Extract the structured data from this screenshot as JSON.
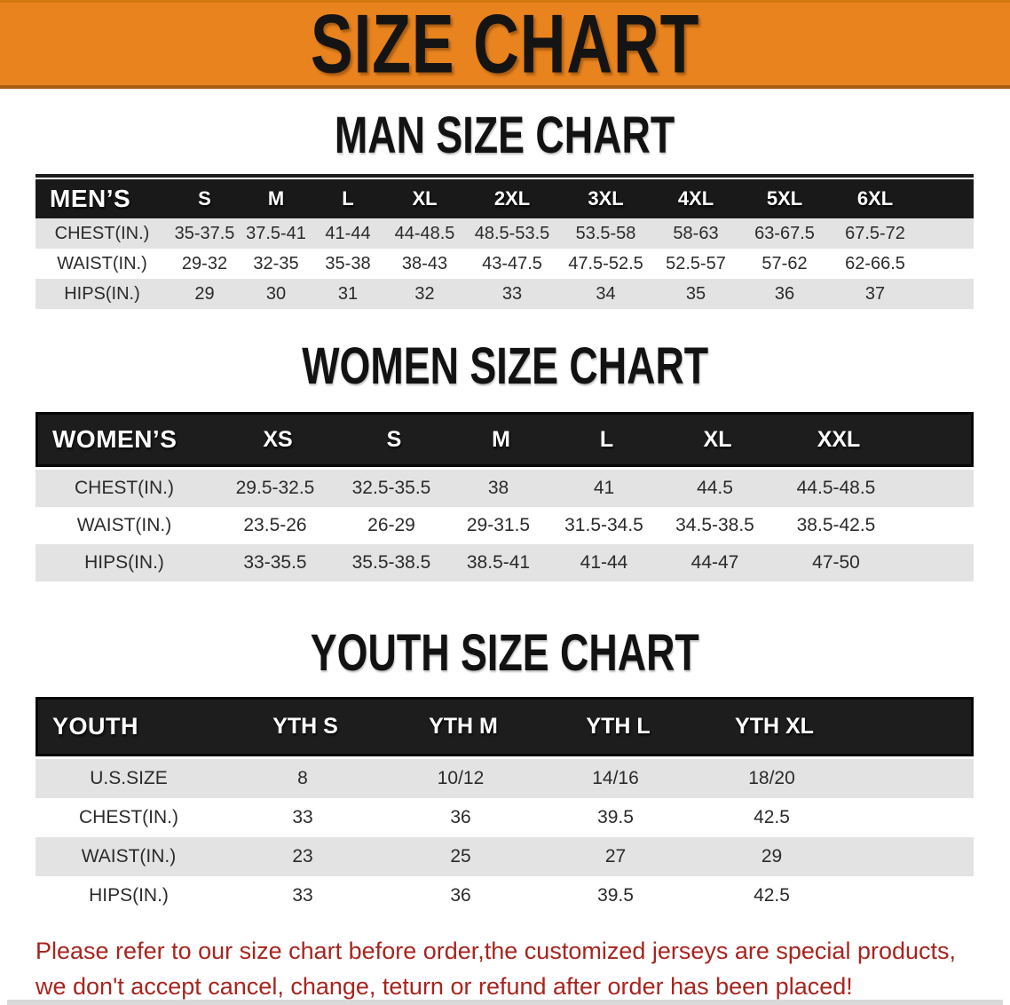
{
  "banner": {
    "title": "SIZE CHART",
    "bg_color": "#e8831e"
  },
  "sections": {
    "men": {
      "heading": "MAN SIZE CHART"
    },
    "women": {
      "heading": "WOMEN SIZE CHART"
    },
    "youth": {
      "heading": "YOUTH SIZE CHART"
    }
  },
  "tables": {
    "men": {
      "label": "MEN’S",
      "columns": [
        "S",
        "M",
        "L",
        "XL",
        "2XL",
        "3XL",
        "4XL",
        "5XL",
        "6XL"
      ],
      "rows": [
        {
          "label": "CHEST(IN.)",
          "values": [
            "35-37.5",
            "37.5-41",
            "41-44",
            "44-48.5",
            "48.5-53.5",
            "53.5-58",
            "58-63",
            "63-67.5",
            "67.5-72"
          ]
        },
        {
          "label": "WAIST(IN.)",
          "values": [
            "29-32",
            "32-35",
            "35-38",
            "38-43",
            "43-47.5",
            "47.5-52.5",
            "52.5-57",
            "57-62",
            "62-66.5"
          ]
        },
        {
          "label": "HIPS(IN.)",
          "values": [
            "29",
            "30",
            "31",
            "32",
            "33",
            "34",
            "35",
            "36",
            "37"
          ]
        }
      ]
    },
    "women": {
      "label": "WOMEN’S",
      "columns": [
        "XS",
        "S",
        "M",
        "L",
        "XL",
        "XXL"
      ],
      "rows": [
        {
          "label": "CHEST(IN.)",
          "values": [
            "29.5-32.5",
            "32.5-35.5",
            "38",
            "41",
            "44.5",
            "44.5-48.5"
          ]
        },
        {
          "label": "WAIST(IN.)",
          "values": [
            "23.5-26",
            "26-29",
            "29-31.5",
            "31.5-34.5",
            "34.5-38.5",
            "38.5-42.5"
          ]
        },
        {
          "label": "HIPS(IN.)",
          "values": [
            "33-35.5",
            "35.5-38.5",
            "38.5-41",
            "41-44",
            "44-47",
            "47-50"
          ]
        }
      ]
    },
    "youth": {
      "label": "YOUTH",
      "columns": [
        "YTH S",
        "YTH M",
        "YTH L",
        "YTH XL"
      ],
      "rows": [
        {
          "label": "U.S.SIZE",
          "values": [
            "8",
            "10/12",
            "14/16",
            "18/20"
          ]
        },
        {
          "label": "CHEST(IN.)",
          "values": [
            "33",
            "36",
            "39.5",
            "42.5"
          ]
        },
        {
          "label": "WAIST(IN.)",
          "values": [
            "23",
            "25",
            "27",
            "29"
          ]
        },
        {
          "label": "HIPS(IN.)",
          "values": [
            "33",
            "36",
            "39.5",
            "42.5"
          ]
        }
      ]
    }
  },
  "disclaimer": {
    "line1": "Please refer to our size chart before order,the customized jerseys are special products,",
    "line2": "we don't accept cancel, change, teturn or refund after order has been placed!",
    "text_color": "#a8241e"
  },
  "colors": {
    "table_header_bg": "#1a1a1a",
    "row_stripe_gray": "#e3e3e3",
    "banner_orange": "#e8831e"
  }
}
